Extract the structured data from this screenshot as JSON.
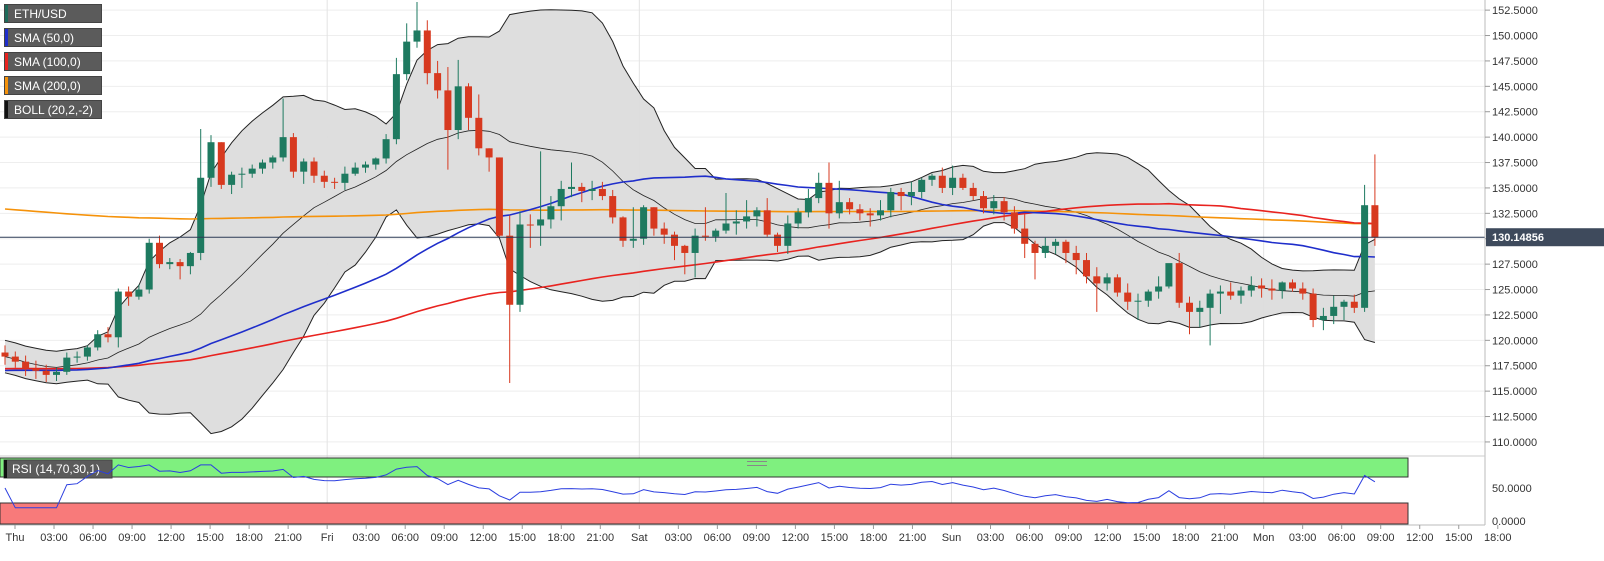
{
  "chart_data": {
    "type": "candlestick",
    "symbol": "ETH/USD",
    "indicators": [
      {
        "name": "SMA (50,0)",
        "color": "#1f2ecb"
      },
      {
        "name": "SMA (100,0)",
        "color": "#e8231f"
      },
      {
        "name": "SMA (200,0)",
        "color": "#f5920a"
      },
      {
        "name": "BOLL (20,2,-2)",
        "color": "#222222"
      }
    ],
    "price_axis": {
      "min": 110,
      "max": 152.5,
      "ticks": [
        "152.5000",
        "150.0000",
        "147.5000",
        "145.0000",
        "142.5000",
        "140.0000",
        "137.5000",
        "135.0000",
        "132.5000",
        "130.0000",
        "127.5000",
        "125.0000",
        "122.5000",
        "120.0000",
        "117.5000",
        "115.0000",
        "112.5000",
        "110.0000"
      ]
    },
    "last_price": "130.14856",
    "time_axis": [
      "Thu",
      "03:00",
      "06:00",
      "09:00",
      "12:00",
      "15:00",
      "18:00",
      "21:00",
      "Fri",
      "03:00",
      "06:00",
      "09:00",
      "12:00",
      "15:00",
      "18:00",
      "21:00",
      "Sat",
      "03:00",
      "06:00",
      "09:00",
      "12:00",
      "15:00",
      "18:00",
      "21:00",
      "Sun",
      "03:00",
      "06:00",
      "09:00",
      "12:00",
      "15:00",
      "18:00",
      "21:00",
      "Mon",
      "03:00",
      "06:00",
      "09:00",
      "12:00",
      "15:00",
      "18:00"
    ],
    "candles": [
      [
        118.8,
        119.5,
        117.6,
        118.4
      ],
      [
        118.4,
        118.9,
        117.3,
        117.9
      ],
      [
        117.9,
        118.5,
        116.5,
        117.2
      ],
      [
        117.2,
        118.0,
        116.2,
        117.0
      ],
      [
        117.0,
        117.6,
        115.9,
        116.6
      ],
      [
        116.6,
        117.3,
        116.0,
        116.9
      ],
      [
        116.9,
        118.8,
        116.6,
        118.3
      ],
      [
        118.3,
        118.9,
        117.8,
        118.4
      ],
      [
        118.4,
        119.5,
        118.0,
        119.3
      ],
      [
        119.3,
        121.0,
        119.0,
        120.6
      ],
      [
        120.6,
        121.3,
        119.8,
        120.3
      ],
      [
        120.3,
        125.1,
        119.3,
        124.8
      ],
      [
        124.8,
        125.3,
        123.4,
        124.3
      ],
      [
        124.3,
        125.5,
        124.0,
        125.0
      ],
      [
        125.0,
        130.0,
        124.6,
        129.6
      ],
      [
        129.6,
        130.3,
        127.1,
        127.5
      ],
      [
        127.5,
        128.1,
        127.0,
        127.7
      ],
      [
        127.7,
        128.0,
        126.0,
        127.3
      ],
      [
        127.3,
        128.7,
        126.5,
        128.6
      ],
      [
        128.6,
        140.8,
        127.9,
        136.0
      ],
      [
        136.0,
        140.2,
        135.1,
        139.5
      ],
      [
        139.5,
        139.5,
        134.9,
        135.3
      ],
      [
        135.3,
        136.6,
        134.4,
        136.3
      ],
      [
        136.3,
        137.0,
        135.0,
        136.4
      ],
      [
        136.4,
        137.3,
        136.0,
        136.9
      ],
      [
        136.9,
        137.8,
        136.4,
        137.5
      ],
      [
        137.5,
        138.2,
        136.9,
        138.0
      ],
      [
        138.0,
        143.8,
        137.6,
        140.0
      ],
      [
        140.0,
        140.4,
        136.0,
        136.6
      ],
      [
        136.6,
        137.9,
        135.4,
        137.6
      ],
      [
        137.6,
        138.0,
        135.5,
        136.2
      ],
      [
        136.2,
        136.7,
        135.0,
        135.6
      ],
      [
        135.6,
        136.0,
        134.9,
        135.5
      ],
      [
        135.5,
        137.1,
        134.8,
        136.4
      ],
      [
        136.4,
        137.5,
        136.2,
        137.0
      ],
      [
        137.0,
        137.6,
        136.5,
        137.3
      ],
      [
        137.3,
        138.0,
        136.8,
        137.9
      ],
      [
        137.9,
        140.3,
        137.4,
        139.8
      ],
      [
        139.8,
        147.8,
        139.3,
        146.2
      ],
      [
        146.2,
        151.2,
        145.6,
        149.4
      ],
      [
        149.4,
        153.3,
        148.8,
        150.5
      ],
      [
        150.5,
        151.5,
        145.2,
        146.3
      ],
      [
        146.3,
        147.5,
        143.8,
        144.6
      ],
      [
        144.6,
        146.9,
        136.8,
        140.7
      ],
      [
        140.7,
        147.6,
        139.8,
        145.0
      ],
      [
        145.0,
        145.3,
        140.7,
        141.9
      ],
      [
        141.9,
        144.2,
        138.2,
        138.9
      ],
      [
        138.9,
        138.9,
        136.6,
        138.0
      ],
      [
        138.0,
        138.0,
        130.2,
        130.3
      ],
      [
        130.3,
        132.3,
        115.8,
        123.5
      ],
      [
        123.5,
        132.7,
        122.8,
        131.4
      ],
      [
        131.4,
        132.4,
        129.1,
        131.3
      ],
      [
        131.3,
        138.6,
        129.3,
        131.9
      ],
      [
        131.9,
        134.2,
        131.0,
        133.2
      ],
      [
        133.2,
        135.7,
        131.8,
        134.9
      ],
      [
        134.9,
        137.5,
        134.1,
        135.1
      ],
      [
        135.1,
        135.5,
        133.6,
        134.7
      ],
      [
        134.7,
        135.7,
        133.8,
        134.9
      ],
      [
        134.9,
        135.6,
        133.8,
        134.2
      ],
      [
        134.2,
        134.8,
        131.5,
        132.1
      ],
      [
        132.1,
        132.2,
        129.2,
        129.8
      ],
      [
        129.8,
        133.1,
        129.1,
        130.0
      ],
      [
        130.0,
        133.3,
        129.4,
        133.1
      ],
      [
        133.1,
        133.1,
        130.3,
        131.0
      ],
      [
        131.0,
        131.6,
        129.5,
        130.4
      ],
      [
        130.4,
        130.7,
        127.9,
        129.3
      ],
      [
        129.3,
        129.4,
        126.5,
        128.6
      ],
      [
        128.6,
        131.0,
        126.2,
        130.3
      ],
      [
        130.3,
        133.1,
        129.8,
        130.2
      ],
      [
        130.2,
        131.0,
        129.7,
        130.8
      ],
      [
        130.8,
        134.5,
        130.5,
        131.5
      ],
      [
        131.5,
        132.8,
        130.4,
        131.7
      ],
      [
        131.7,
        133.8,
        131.0,
        132.2
      ],
      [
        132.2,
        133.1,
        131.2,
        132.8
      ],
      [
        132.8,
        134.0,
        130.2,
        130.4
      ],
      [
        130.4,
        130.6,
        128.7,
        129.3
      ],
      [
        129.3,
        132.3,
        128.5,
        131.5
      ],
      [
        131.5,
        133.0,
        131.0,
        132.6
      ],
      [
        132.6,
        134.9,
        132.1,
        134.0
      ],
      [
        134.0,
        136.5,
        133.5,
        135.5
      ],
      [
        135.5,
        137.5,
        131.0,
        132.5
      ],
      [
        132.5,
        135.7,
        132.0,
        133.6
      ],
      [
        133.6,
        134.0,
        132.4,
        132.9
      ],
      [
        132.9,
        133.4,
        131.8,
        132.5
      ],
      [
        132.5,
        133.0,
        131.2,
        132.3
      ],
      [
        132.3,
        133.8,
        131.8,
        132.8
      ],
      [
        132.8,
        135.0,
        132.1,
        134.6
      ],
      [
        134.6,
        135.0,
        132.8,
        134.2
      ],
      [
        134.2,
        135.6,
        133.3,
        134.6
      ],
      [
        134.6,
        136.0,
        134.0,
        135.8
      ],
      [
        135.8,
        136.4,
        135.2,
        136.2
      ],
      [
        136.2,
        137.0,
        134.5,
        135.0
      ],
      [
        135.0,
        137.2,
        134.3,
        136.0
      ],
      [
        136.0,
        136.4,
        134.8,
        135.0
      ],
      [
        135.0,
        135.5,
        133.8,
        134.2
      ],
      [
        134.2,
        134.7,
        132.5,
        133.0
      ],
      [
        133.0,
        134.3,
        132.4,
        133.7
      ],
      [
        133.7,
        134.1,
        131.8,
        132.6
      ],
      [
        132.6,
        133.2,
        130.5,
        131.0
      ],
      [
        131.0,
        132.4,
        128.1,
        129.5
      ],
      [
        129.5,
        129.8,
        126.0,
        128.6
      ],
      [
        128.6,
        130.1,
        128.1,
        129.3
      ],
      [
        129.3,
        130.0,
        128.5,
        129.7
      ],
      [
        129.7,
        129.9,
        127.6,
        128.6
      ],
      [
        128.6,
        129.3,
        126.5,
        127.9
      ],
      [
        127.9,
        128.6,
        125.6,
        126.3
      ],
      [
        126.3,
        127.2,
        122.8,
        125.6
      ],
      [
        125.6,
        126.6,
        124.9,
        126.2
      ],
      [
        126.2,
        126.5,
        124.3,
        124.7
      ],
      [
        124.7,
        125.6,
        123.0,
        123.8
      ],
      [
        123.8,
        124.6,
        122.0,
        123.9
      ],
      [
        123.9,
        125.0,
        123.3,
        124.8
      ],
      [
        124.8,
        126.3,
        124.1,
        125.3
      ],
      [
        125.3,
        127.5,
        125.1,
        127.6
      ],
      [
        127.6,
        128.6,
        123.2,
        123.7
      ],
      [
        123.7,
        124.3,
        120.6,
        122.8
      ],
      [
        122.8,
        123.9,
        121.3,
        123.2
      ],
      [
        123.2,
        125.0,
        119.5,
        124.6
      ],
      [
        124.6,
        125.4,
        122.6,
        124.8
      ],
      [
        124.8,
        125.7,
        124.0,
        124.4
      ],
      [
        124.4,
        125.3,
        123.6,
        124.9
      ],
      [
        124.9,
        126.3,
        124.3,
        125.4
      ],
      [
        125.4,
        126.1,
        124.2,
        125.1
      ],
      [
        125.1,
        126.0,
        124.0,
        124.9
      ],
      [
        124.9,
        125.8,
        124.1,
        125.7
      ],
      [
        125.7,
        126.0,
        124.8,
        125.1
      ],
      [
        125.1,
        125.7,
        124.0,
        124.6
      ],
      [
        124.6,
        125.1,
        121.3,
        122.0
      ],
      [
        122.0,
        123.2,
        121.0,
        122.4
      ],
      [
        122.4,
        124.4,
        121.6,
        123.3
      ],
      [
        123.3,
        124.0,
        122.0,
        123.8
      ],
      [
        123.8,
        124.5,
        122.7,
        123.2
      ],
      [
        123.2,
        135.3,
        122.8,
        133.3
      ],
      [
        133.3,
        138.3,
        129.3,
        130.1
      ]
    ],
    "rsi": {
      "name": "RSI (14,70,30,1)",
      "upper": 70,
      "lower": 30,
      "ticks": [
        "50.0000",
        "0.0000"
      ]
    }
  }
}
